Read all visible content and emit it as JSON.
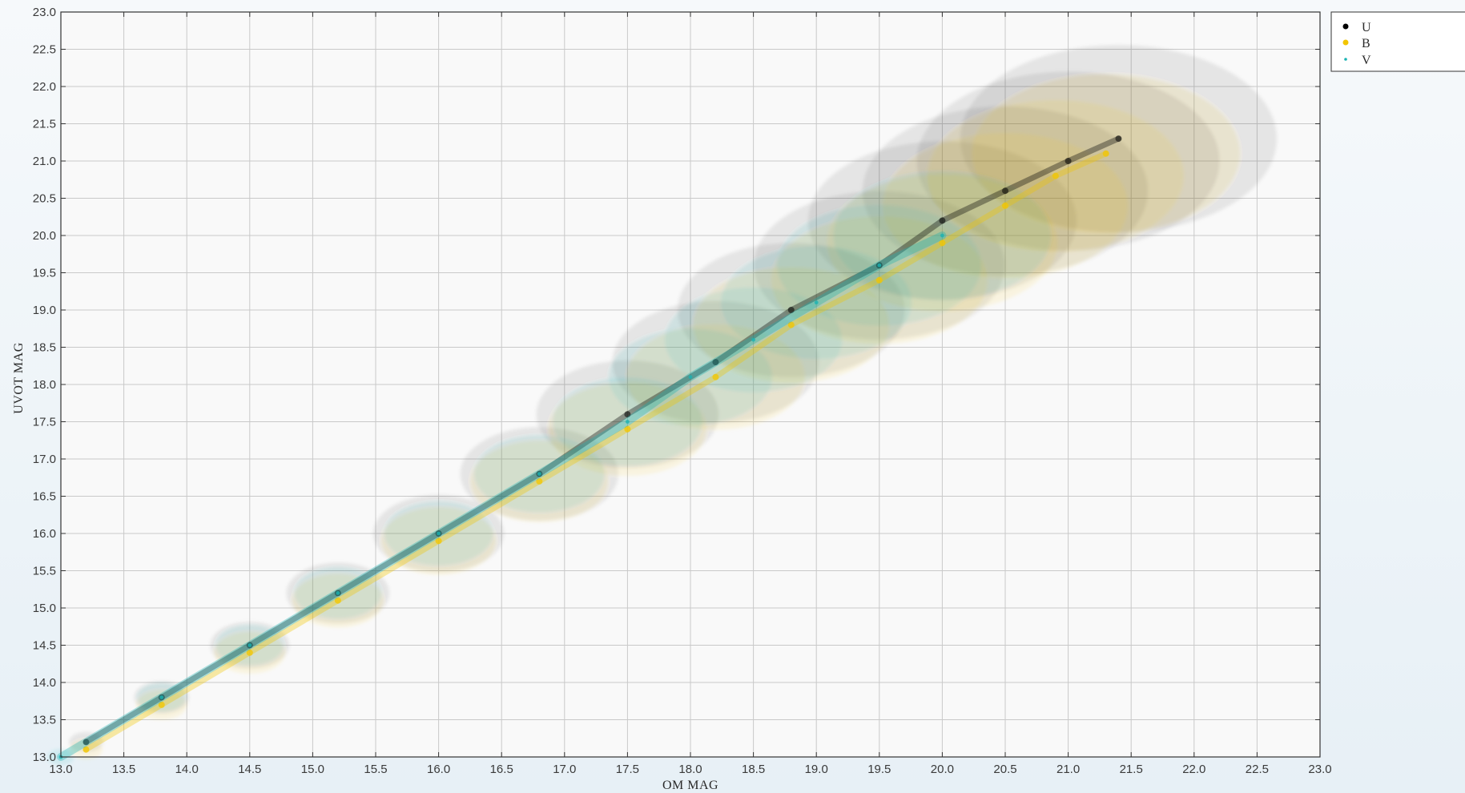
{
  "chart_data": {
    "type": "scatter",
    "xlabel": "OM MAG",
    "ylabel": "UVOT MAG",
    "xlim": [
      13.0,
      23.0
    ],
    "ylim": [
      13.0,
      23.0
    ],
    "x_tick_labels": [
      "13.0",
      "13.5",
      "14.0",
      "14.5",
      "15.0",
      "15.5",
      "16.0",
      "16.5",
      "17.0",
      "17.5",
      "18.0",
      "18.5",
      "19.0",
      "19.5",
      "20.0",
      "20.5",
      "21.0",
      "21.5",
      "22.0",
      "22.5",
      "23.0"
    ],
    "y_tick_labels": [
      "13.0",
      "13.5",
      "14.0",
      "14.5",
      "15.0",
      "15.5",
      "16.0",
      "16.5",
      "17.0",
      "17.5",
      "18.0",
      "18.5",
      "19.0",
      "19.5",
      "20.0",
      "20.5",
      "21.0",
      "21.5",
      "22.0",
      "22.5",
      "23.0"
    ],
    "grid": true,
    "legend_position": "outside-top-right",
    "series": [
      {
        "name": "U",
        "color": "#000000",
        "x": [
          13.2,
          13.8,
          14.5,
          15.2,
          16.0,
          16.8,
          17.5,
          18.2,
          18.8,
          19.5,
          20.0,
          20.5,
          21.0,
          21.4
        ],
        "y": [
          13.2,
          13.8,
          14.5,
          15.2,
          16.0,
          16.8,
          17.6,
          18.3,
          19.0,
          19.6,
          20.2,
          20.6,
          21.0,
          21.3
        ]
      },
      {
        "name": "B",
        "color": "#f2c500",
        "x": [
          13.2,
          13.8,
          14.5,
          15.2,
          16.0,
          16.8,
          17.5,
          18.2,
          18.8,
          19.5,
          20.0,
          20.5,
          20.9,
          21.3
        ],
        "y": [
          13.1,
          13.7,
          14.4,
          15.1,
          15.9,
          16.7,
          17.4,
          18.1,
          18.8,
          19.4,
          19.9,
          20.4,
          20.8,
          21.1
        ]
      },
      {
        "name": "V",
        "color": "#1ab3b3",
        "x": [
          13.0,
          13.8,
          14.5,
          15.2,
          16.0,
          16.8,
          17.5,
          18.0,
          18.5,
          19.0,
          19.5,
          20.0
        ],
        "y": [
          13.0,
          13.8,
          14.5,
          15.2,
          16.0,
          16.8,
          17.5,
          18.1,
          18.6,
          19.1,
          19.6,
          20.0
        ]
      }
    ]
  }
}
